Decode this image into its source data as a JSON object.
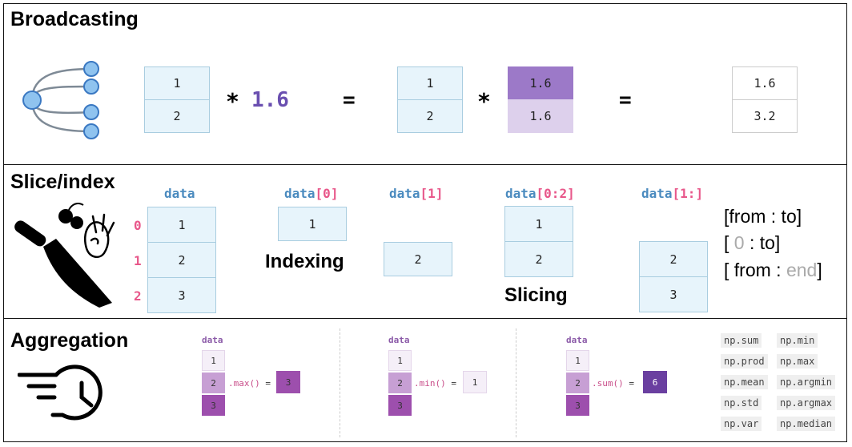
{
  "titles": {
    "broadcasting": "Broadcasting",
    "slice": "Slice/index",
    "aggregation": "Aggregation"
  },
  "broadcast": {
    "left": [
      "1",
      "2"
    ],
    "times": "*",
    "scalar": "1.6",
    "equals": "=",
    "mid": [
      "1",
      "2"
    ],
    "stretched": [
      "1.6",
      "1.6"
    ],
    "result": [
      "1.6",
      "3.2"
    ]
  },
  "slice": {
    "labels": {
      "data": "data",
      "d0": {
        "name": "data",
        "open": "[",
        "idx": "0",
        "close": "]"
      },
      "d1": {
        "name": "data",
        "open": "[",
        "idx": "1",
        "close": "]"
      },
      "d02": {
        "name": "data",
        "open": "[",
        "idx": "0:2",
        "close": "]"
      },
      "d1c": {
        "name": "data",
        "open": "[",
        "idx": "1:",
        "close": "]"
      }
    },
    "indices": [
      "0",
      "1",
      "2"
    ],
    "data": [
      "1",
      "2",
      "3"
    ],
    "d0": [
      "1"
    ],
    "d1": [
      "2"
    ],
    "d02": [
      "1",
      "2"
    ],
    "d1c": [
      "2",
      "3"
    ],
    "indexing": "Indexing",
    "slicing": "Slicing",
    "syntax": {
      "l1": "[from : to]",
      "l2_open": "[ ",
      "l2_zero": "0",
      "l2_rest": " : to]",
      "l3_open": "[ from : ",
      "l3_end": "end",
      "l3_close": "]"
    }
  },
  "aggregation": {
    "label": "data",
    "values": [
      "1",
      "2",
      "3"
    ],
    "eq": "=",
    "max": {
      "fn": ".max()",
      "result": "3"
    },
    "min": {
      "fn": ".min()",
      "result": "1"
    },
    "sum": {
      "fn": ".sum()",
      "result": "6"
    },
    "functions": [
      "np.sum",
      "np.min",
      "np.prod",
      "np.max",
      "np.mean",
      "np.argmin",
      "np.std",
      "np.argmax",
      "np.var",
      "np.median"
    ]
  },
  "colors": {
    "blue_cell": "#e7f4fb",
    "purple_dark": "#9c79c8",
    "purple_light": "#ddd0ec",
    "agg_light": "#f5eff8",
    "agg_mid": "#c79fd4",
    "agg_dark": "#9d4fad",
    "sum_result": "#6a3fa0"
  },
  "icons": [
    "tree-icon",
    "knife-icon",
    "speed-clock-icon"
  ]
}
